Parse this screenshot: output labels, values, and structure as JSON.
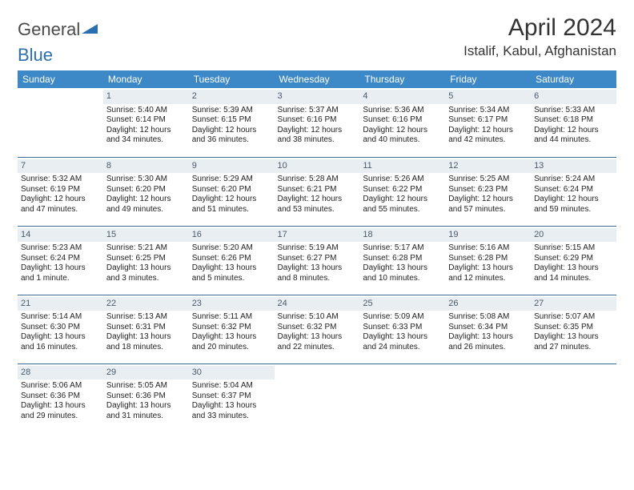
{
  "colors": {
    "header_bg": "#3d88c7",
    "header_text": "#ffffff",
    "daynum_bg": "#e9eef3",
    "daynum_text": "#4a5a68",
    "row_border": "#3d6a96",
    "page_bg": "#ffffff",
    "logo_blue": "#2b6fb3",
    "title_text": "#333333"
  },
  "logo": {
    "part1": "General",
    "part2": "Blue"
  },
  "title": "April 2024",
  "location": "Istalif, Kabul, Afghanistan",
  "weekdays": [
    "Sunday",
    "Monday",
    "Tuesday",
    "Wednesday",
    "Thursday",
    "Friday",
    "Saturday"
  ],
  "weeks": [
    [
      {
        "empty": true
      },
      {
        "num": "1",
        "sunrise": "Sunrise: 5:40 AM",
        "sunset": "Sunset: 6:14 PM",
        "day1": "Daylight: 12 hours",
        "day2": "and 34 minutes."
      },
      {
        "num": "2",
        "sunrise": "Sunrise: 5:39 AM",
        "sunset": "Sunset: 6:15 PM",
        "day1": "Daylight: 12 hours",
        "day2": "and 36 minutes."
      },
      {
        "num": "3",
        "sunrise": "Sunrise: 5:37 AM",
        "sunset": "Sunset: 6:16 PM",
        "day1": "Daylight: 12 hours",
        "day2": "and 38 minutes."
      },
      {
        "num": "4",
        "sunrise": "Sunrise: 5:36 AM",
        "sunset": "Sunset: 6:16 PM",
        "day1": "Daylight: 12 hours",
        "day2": "and 40 minutes."
      },
      {
        "num": "5",
        "sunrise": "Sunrise: 5:34 AM",
        "sunset": "Sunset: 6:17 PM",
        "day1": "Daylight: 12 hours",
        "day2": "and 42 minutes."
      },
      {
        "num": "6",
        "sunrise": "Sunrise: 5:33 AM",
        "sunset": "Sunset: 6:18 PM",
        "day1": "Daylight: 12 hours",
        "day2": "and 44 minutes."
      }
    ],
    [
      {
        "num": "7",
        "sunrise": "Sunrise: 5:32 AM",
        "sunset": "Sunset: 6:19 PM",
        "day1": "Daylight: 12 hours",
        "day2": "and 47 minutes."
      },
      {
        "num": "8",
        "sunrise": "Sunrise: 5:30 AM",
        "sunset": "Sunset: 6:20 PM",
        "day1": "Daylight: 12 hours",
        "day2": "and 49 minutes."
      },
      {
        "num": "9",
        "sunrise": "Sunrise: 5:29 AM",
        "sunset": "Sunset: 6:20 PM",
        "day1": "Daylight: 12 hours",
        "day2": "and 51 minutes."
      },
      {
        "num": "10",
        "sunrise": "Sunrise: 5:28 AM",
        "sunset": "Sunset: 6:21 PM",
        "day1": "Daylight: 12 hours",
        "day2": "and 53 minutes."
      },
      {
        "num": "11",
        "sunrise": "Sunrise: 5:26 AM",
        "sunset": "Sunset: 6:22 PM",
        "day1": "Daylight: 12 hours",
        "day2": "and 55 minutes."
      },
      {
        "num": "12",
        "sunrise": "Sunrise: 5:25 AM",
        "sunset": "Sunset: 6:23 PM",
        "day1": "Daylight: 12 hours",
        "day2": "and 57 minutes."
      },
      {
        "num": "13",
        "sunrise": "Sunrise: 5:24 AM",
        "sunset": "Sunset: 6:24 PM",
        "day1": "Daylight: 12 hours",
        "day2": "and 59 minutes."
      }
    ],
    [
      {
        "num": "14",
        "sunrise": "Sunrise: 5:23 AM",
        "sunset": "Sunset: 6:24 PM",
        "day1": "Daylight: 13 hours",
        "day2": "and 1 minute."
      },
      {
        "num": "15",
        "sunrise": "Sunrise: 5:21 AM",
        "sunset": "Sunset: 6:25 PM",
        "day1": "Daylight: 13 hours",
        "day2": "and 3 minutes."
      },
      {
        "num": "16",
        "sunrise": "Sunrise: 5:20 AM",
        "sunset": "Sunset: 6:26 PM",
        "day1": "Daylight: 13 hours",
        "day2": "and 5 minutes."
      },
      {
        "num": "17",
        "sunrise": "Sunrise: 5:19 AM",
        "sunset": "Sunset: 6:27 PM",
        "day1": "Daylight: 13 hours",
        "day2": "and 8 minutes."
      },
      {
        "num": "18",
        "sunrise": "Sunrise: 5:17 AM",
        "sunset": "Sunset: 6:28 PM",
        "day1": "Daylight: 13 hours",
        "day2": "and 10 minutes."
      },
      {
        "num": "19",
        "sunrise": "Sunrise: 5:16 AM",
        "sunset": "Sunset: 6:28 PM",
        "day1": "Daylight: 13 hours",
        "day2": "and 12 minutes."
      },
      {
        "num": "20",
        "sunrise": "Sunrise: 5:15 AM",
        "sunset": "Sunset: 6:29 PM",
        "day1": "Daylight: 13 hours",
        "day2": "and 14 minutes."
      }
    ],
    [
      {
        "num": "21",
        "sunrise": "Sunrise: 5:14 AM",
        "sunset": "Sunset: 6:30 PM",
        "day1": "Daylight: 13 hours",
        "day2": "and 16 minutes."
      },
      {
        "num": "22",
        "sunrise": "Sunrise: 5:13 AM",
        "sunset": "Sunset: 6:31 PM",
        "day1": "Daylight: 13 hours",
        "day2": "and 18 minutes."
      },
      {
        "num": "23",
        "sunrise": "Sunrise: 5:11 AM",
        "sunset": "Sunset: 6:32 PM",
        "day1": "Daylight: 13 hours",
        "day2": "and 20 minutes."
      },
      {
        "num": "24",
        "sunrise": "Sunrise: 5:10 AM",
        "sunset": "Sunset: 6:32 PM",
        "day1": "Daylight: 13 hours",
        "day2": "and 22 minutes."
      },
      {
        "num": "25",
        "sunrise": "Sunrise: 5:09 AM",
        "sunset": "Sunset: 6:33 PM",
        "day1": "Daylight: 13 hours",
        "day2": "and 24 minutes."
      },
      {
        "num": "26",
        "sunrise": "Sunrise: 5:08 AM",
        "sunset": "Sunset: 6:34 PM",
        "day1": "Daylight: 13 hours",
        "day2": "and 26 minutes."
      },
      {
        "num": "27",
        "sunrise": "Sunrise: 5:07 AM",
        "sunset": "Sunset: 6:35 PM",
        "day1": "Daylight: 13 hours",
        "day2": "and 27 minutes."
      }
    ],
    [
      {
        "num": "28",
        "sunrise": "Sunrise: 5:06 AM",
        "sunset": "Sunset: 6:36 PM",
        "day1": "Daylight: 13 hours",
        "day2": "and 29 minutes."
      },
      {
        "num": "29",
        "sunrise": "Sunrise: 5:05 AM",
        "sunset": "Sunset: 6:36 PM",
        "day1": "Daylight: 13 hours",
        "day2": "and 31 minutes."
      },
      {
        "num": "30",
        "sunrise": "Sunrise: 5:04 AM",
        "sunset": "Sunset: 6:37 PM",
        "day1": "Daylight: 13 hours",
        "day2": "and 33 minutes."
      },
      {
        "empty": true
      },
      {
        "empty": true
      },
      {
        "empty": true
      },
      {
        "empty": true
      }
    ]
  ]
}
